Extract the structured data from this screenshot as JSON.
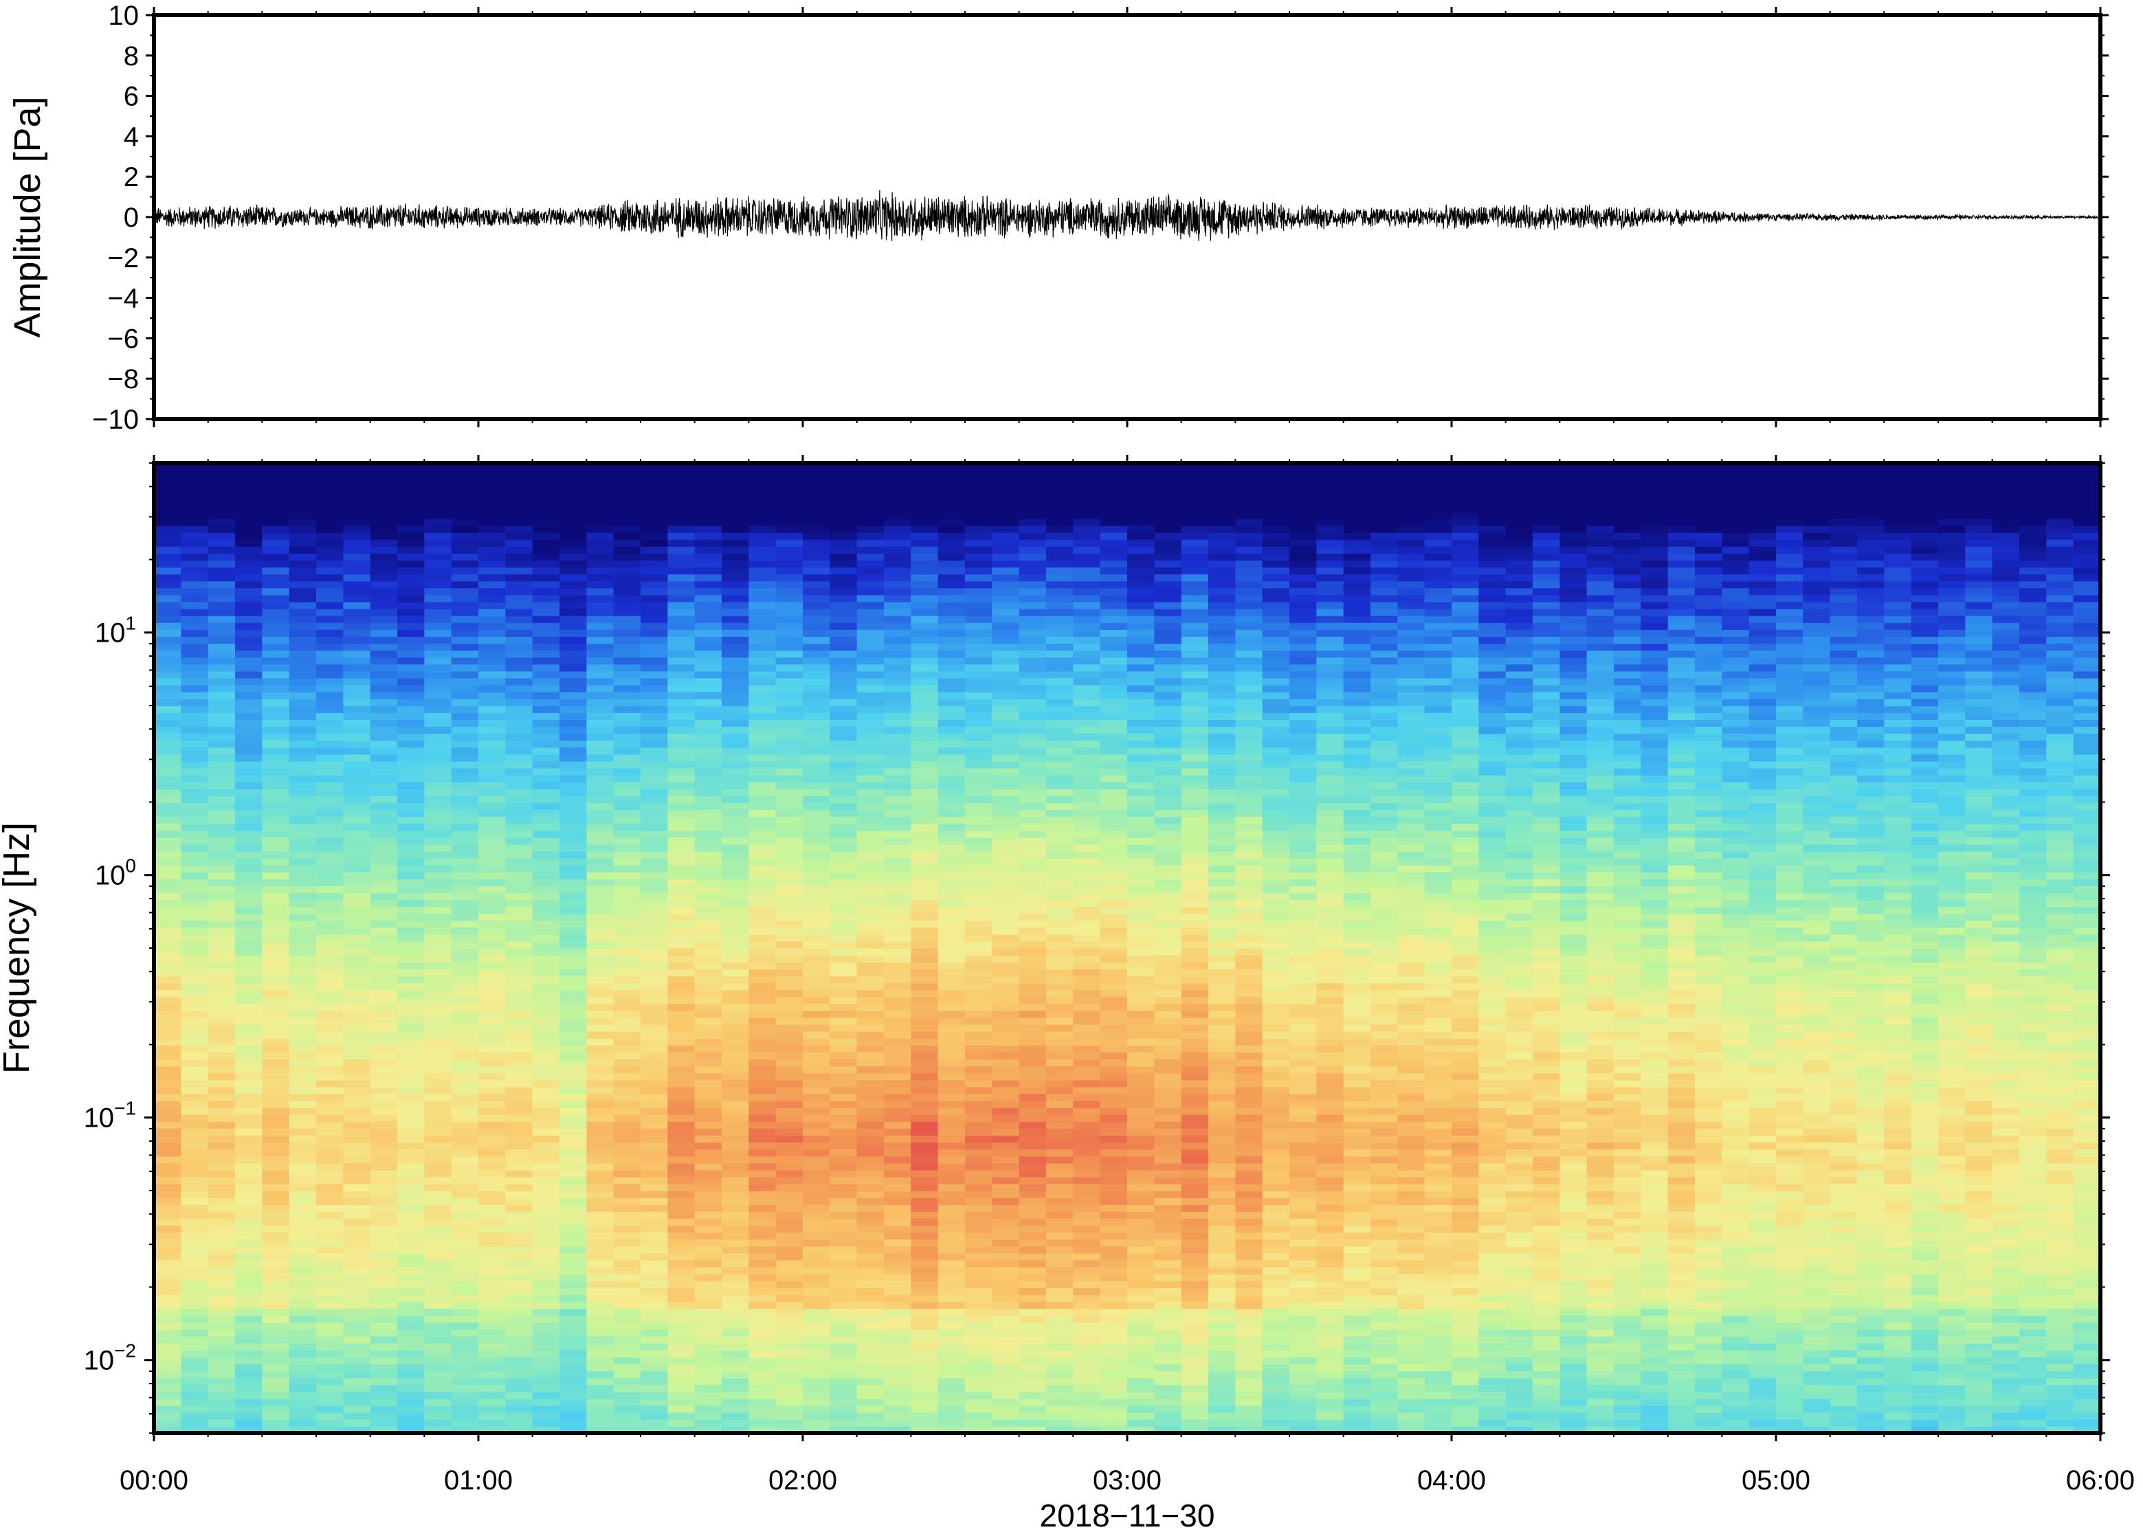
{
  "chart_data": [
    {
      "type": "line",
      "panel": "waveform",
      "ylabel": "Amplitude [Pa]",
      "ylim": [
        -10,
        10
      ],
      "yticks": [
        10,
        8,
        6,
        4,
        2,
        0,
        -2,
        -4,
        -6,
        -8,
        -10
      ],
      "ytick_labels": [
        "10",
        "8",
        "6",
        "4",
        "2",
        "0",
        "−2",
        "−4",
        "−6",
        "−8",
        "−10"
      ],
      "xlim_hours": [
        0,
        6
      ],
      "grid": false,
      "series": [
        {
          "color": "#000000",
          "envelope_time_hours": [
            0.0,
            0.25,
            0.5,
            0.6,
            0.75,
            1.0,
            1.25,
            1.35,
            1.5,
            1.75,
            2.0,
            2.25,
            2.5,
            2.75,
            3.0,
            3.25,
            3.5,
            3.75,
            4.0,
            4.25,
            4.5,
            4.75,
            5.0,
            5.5,
            6.0
          ],
          "envelope_amplitude_pa": [
            0.4,
            0.5,
            0.35,
            0.45,
            0.55,
            0.4,
            0.35,
            0.4,
            0.8,
            0.85,
            0.8,
            1.0,
            0.85,
            0.75,
            0.85,
            0.9,
            0.55,
            0.4,
            0.45,
            0.5,
            0.45,
            0.3,
            0.15,
            0.1,
            0.05
          ]
        }
      ]
    },
    {
      "type": "heatmap",
      "panel": "spectrogram",
      "ylabel": "Frequency [Hz]",
      "xlabel": "2018−11−30",
      "y_scale": "log",
      "ylim_hz": [
        0.005,
        50
      ],
      "yticks_hz": [
        10,
        1,
        0.1,
        0.01
      ],
      "ytick_labels": [
        {
          "base": "10",
          "exp": "1"
        },
        {
          "base": "10",
          "exp": "0"
        },
        {
          "base": "10",
          "exp": "−1"
        },
        {
          "base": "10",
          "exp": "−2"
        }
      ],
      "xticks_hours": [
        0,
        1,
        2,
        3,
        4,
        5,
        6
      ],
      "xtick_labels": [
        "00:00",
        "01:00",
        "02:00",
        "03:00",
        "04:00",
        "05:00",
        "06:00"
      ],
      "colormap": [
        "#0b0a78",
        "#1a2fd0",
        "#2f8fee",
        "#4fd1ef",
        "#7fe7c7",
        "#c6f59a",
        "#f4ee92",
        "#f9c86b",
        "#f39a55",
        "#e8574a"
      ],
      "relative_intensity_by_time": {
        "time_hours": [
          0.0,
          0.5,
          1.0,
          1.3,
          1.5,
          2.0,
          2.5,
          3.0,
          3.5,
          4.0,
          4.5,
          5.0,
          5.5,
          6.0
        ],
        "level": [
          0.6,
          0.55,
          0.5,
          0.45,
          0.8,
          0.85,
          0.9,
          0.88,
          0.8,
          0.65,
          0.62,
          0.45,
          0.4,
          0.35
        ]
      },
      "grid": false
    }
  ]
}
